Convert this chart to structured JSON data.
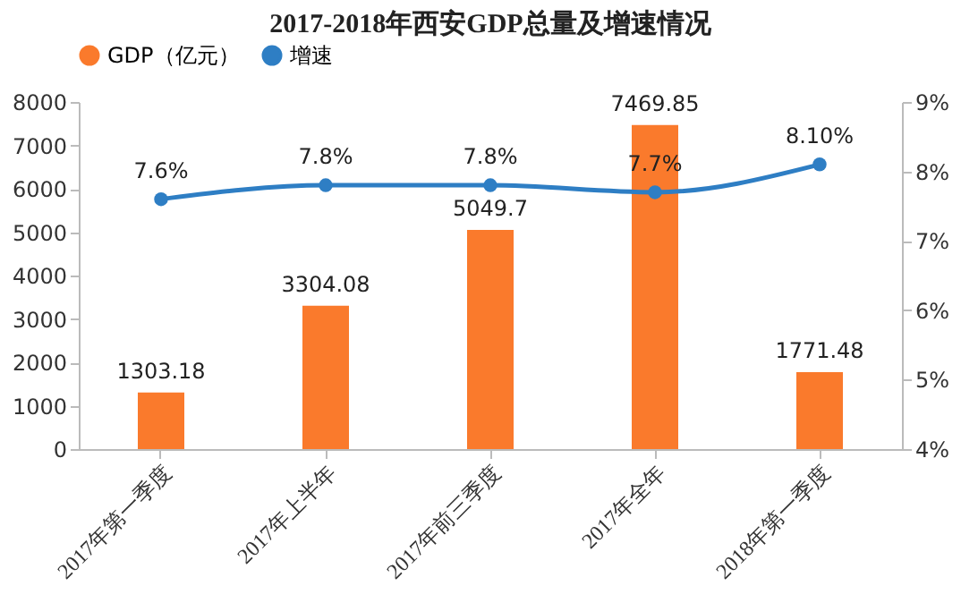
{
  "chart_data": {
    "type": "bar",
    "title": "2017-2018年西安GDP总量及增速情况",
    "categories": [
      "2017年第一季度",
      "2017年上半年",
      "2017年前三季度",
      "2017年全年",
      "2018年第一季度"
    ],
    "series": [
      {
        "name": "GDP（亿元）",
        "color": "#fa7a2c",
        "values": [
          1303.18,
          3304.08,
          5049.7,
          7469.85,
          1771.48
        ],
        "value_labels": [
          "1303.18",
          "3304.08",
          "5049.7",
          "7469.85",
          "1771.48"
        ]
      },
      {
        "name": "增速",
        "type": "line",
        "axis": "y2",
        "color": "#2e7ec4",
        "values": [
          7.6,
          7.8,
          7.8,
          7.7,
          8.1
        ],
        "value_labels": [
          "7.6%",
          "7.8%",
          "7.8%",
          "7.7%",
          "8.10%"
        ]
      }
    ],
    "ylim": [
      0,
      8000
    ],
    "yticks": [
      0,
      1000,
      2000,
      3000,
      4000,
      5000,
      6000,
      7000,
      8000
    ],
    "y2lim": [
      4,
      9
    ],
    "y2ticks": [
      {
        "value": 4,
        "label": "4%"
      },
      {
        "value": 5,
        "label": "5%"
      },
      {
        "value": 6,
        "label": "6%"
      },
      {
        "value": 7,
        "label": "7%"
      },
      {
        "value": 8,
        "label": "8%"
      },
      {
        "value": 9,
        "label": "9%"
      }
    ],
    "legend": "top",
    "marker": "circle",
    "grid": false
  }
}
